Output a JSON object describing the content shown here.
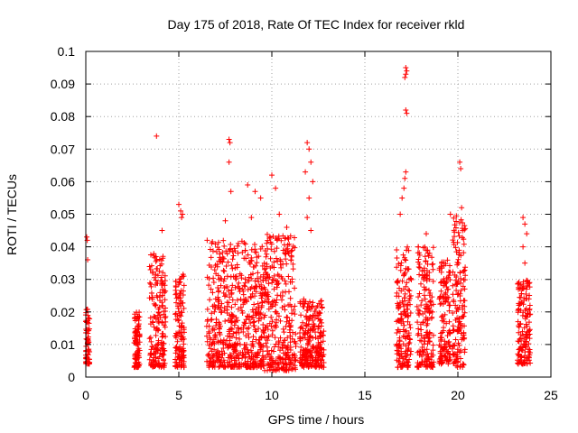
{
  "chart_data": {
    "type": "scatter",
    "title": "Day 175 of 2018, Rate Of TEC Index for receiver rkld",
    "xlabel": "GPS time / hours",
    "ylabel": "ROTI / TECUs",
    "xlim": [
      0,
      25
    ],
    "ylim": [
      0,
      0.1
    ],
    "x_ticks": [
      0,
      5,
      10,
      15,
      20,
      25
    ],
    "x_tick_labels": [
      "0",
      "5",
      "10",
      "15",
      "20",
      "25"
    ],
    "y_ticks": [
      0,
      0.01,
      0.02,
      0.03,
      0.04,
      0.05,
      0.06,
      0.07,
      0.08,
      0.09,
      0.1
    ],
    "y_tick_labels": [
      "0",
      "0.01",
      "0.02",
      "0.03",
      "0.04",
      "0.05",
      "0.06",
      "0.07",
      "0.08",
      "0.09",
      "0.1"
    ],
    "grid": true,
    "marker": "+",
    "color": "#ff0000",
    "clusters": [
      {
        "x_start": 0.0,
        "x_end": 0.2,
        "y_min": 0.004,
        "y_max": 0.022,
        "extra": [
          [
            0.05,
            0.043
          ],
          [
            0.08,
            0.042
          ],
          [
            0.1,
            0.036
          ]
        ]
      },
      {
        "x_start": 2.6,
        "x_end": 2.9,
        "y_min": 0.003,
        "y_max": 0.02,
        "extra": []
      },
      {
        "x_start": 3.4,
        "x_end": 4.3,
        "y_min": 0.003,
        "y_max": 0.038,
        "extra": [
          [
            3.8,
            0.074
          ],
          [
            4.1,
            0.045
          ]
        ]
      },
      {
        "x_start": 4.8,
        "x_end": 5.3,
        "y_min": 0.003,
        "y_max": 0.032,
        "extra": [
          [
            5.0,
            0.053
          ],
          [
            5.1,
            0.051
          ],
          [
            5.2,
            0.05
          ],
          [
            5.15,
            0.049
          ]
        ]
      },
      {
        "x_start": 6.5,
        "x_end": 8.2,
        "y_min": 0.003,
        "y_max": 0.042,
        "extra": [
          [
            7.7,
            0.073
          ],
          [
            7.75,
            0.072
          ],
          [
            7.7,
            0.066
          ],
          [
            7.8,
            0.057
          ],
          [
            7.5,
            0.048
          ]
        ]
      },
      {
        "x_start": 8.2,
        "x_end": 9.6,
        "y_min": 0.003,
        "y_max": 0.042,
        "extra": [
          [
            8.7,
            0.059
          ],
          [
            9.1,
            0.057
          ],
          [
            9.4,
            0.055
          ],
          [
            8.9,
            0.049
          ]
        ]
      },
      {
        "x_start": 9.6,
        "x_end": 11.3,
        "y_min": 0.002,
        "y_max": 0.044,
        "extra": [
          [
            10.0,
            0.062
          ],
          [
            10.2,
            0.058
          ],
          [
            10.4,
            0.05
          ],
          [
            10.8,
            0.046
          ]
        ]
      },
      {
        "x_start": 11.5,
        "x_end": 12.8,
        "y_min": 0.003,
        "y_max": 0.024,
        "extra": [
          [
            11.9,
            0.072
          ],
          [
            12.0,
            0.07
          ],
          [
            12.1,
            0.066
          ],
          [
            11.8,
            0.063
          ],
          [
            12.2,
            0.06
          ],
          [
            12.0,
            0.055
          ],
          [
            11.9,
            0.049
          ],
          [
            12.1,
            0.045
          ]
        ]
      },
      {
        "x_start": 16.7,
        "x_end": 17.5,
        "y_min": 0.003,
        "y_max": 0.04,
        "extra": [
          [
            17.2,
            0.095
          ],
          [
            17.25,
            0.094
          ],
          [
            17.2,
            0.093
          ],
          [
            17.15,
            0.092
          ],
          [
            17.2,
            0.082
          ],
          [
            17.25,
            0.081
          ],
          [
            17.2,
            0.063
          ],
          [
            17.15,
            0.061
          ],
          [
            17.1,
            0.058
          ],
          [
            17.0,
            0.055
          ],
          [
            16.9,
            0.05
          ]
        ]
      },
      {
        "x_start": 17.8,
        "x_end": 18.7,
        "y_min": 0.003,
        "y_max": 0.04,
        "extra": [
          [
            18.3,
            0.044
          ]
        ]
      },
      {
        "x_start": 19.0,
        "x_end": 19.6,
        "y_min": 0.004,
        "y_max": 0.036,
        "extra": [
          [
            19.6,
            0.05
          ]
        ]
      },
      {
        "x_start": 19.7,
        "x_end": 20.4,
        "y_min": 0.003,
        "y_max": 0.05,
        "extra": [
          [
            20.1,
            0.066
          ],
          [
            20.15,
            0.064
          ],
          [
            20.2,
            0.052
          ]
        ]
      },
      {
        "x_start": 23.2,
        "x_end": 23.9,
        "y_min": 0.004,
        "y_max": 0.03,
        "extra": [
          [
            23.5,
            0.049
          ],
          [
            23.6,
            0.047
          ],
          [
            23.7,
            0.044
          ],
          [
            23.5,
            0.04
          ],
          [
            23.6,
            0.035
          ]
        ]
      }
    ]
  }
}
